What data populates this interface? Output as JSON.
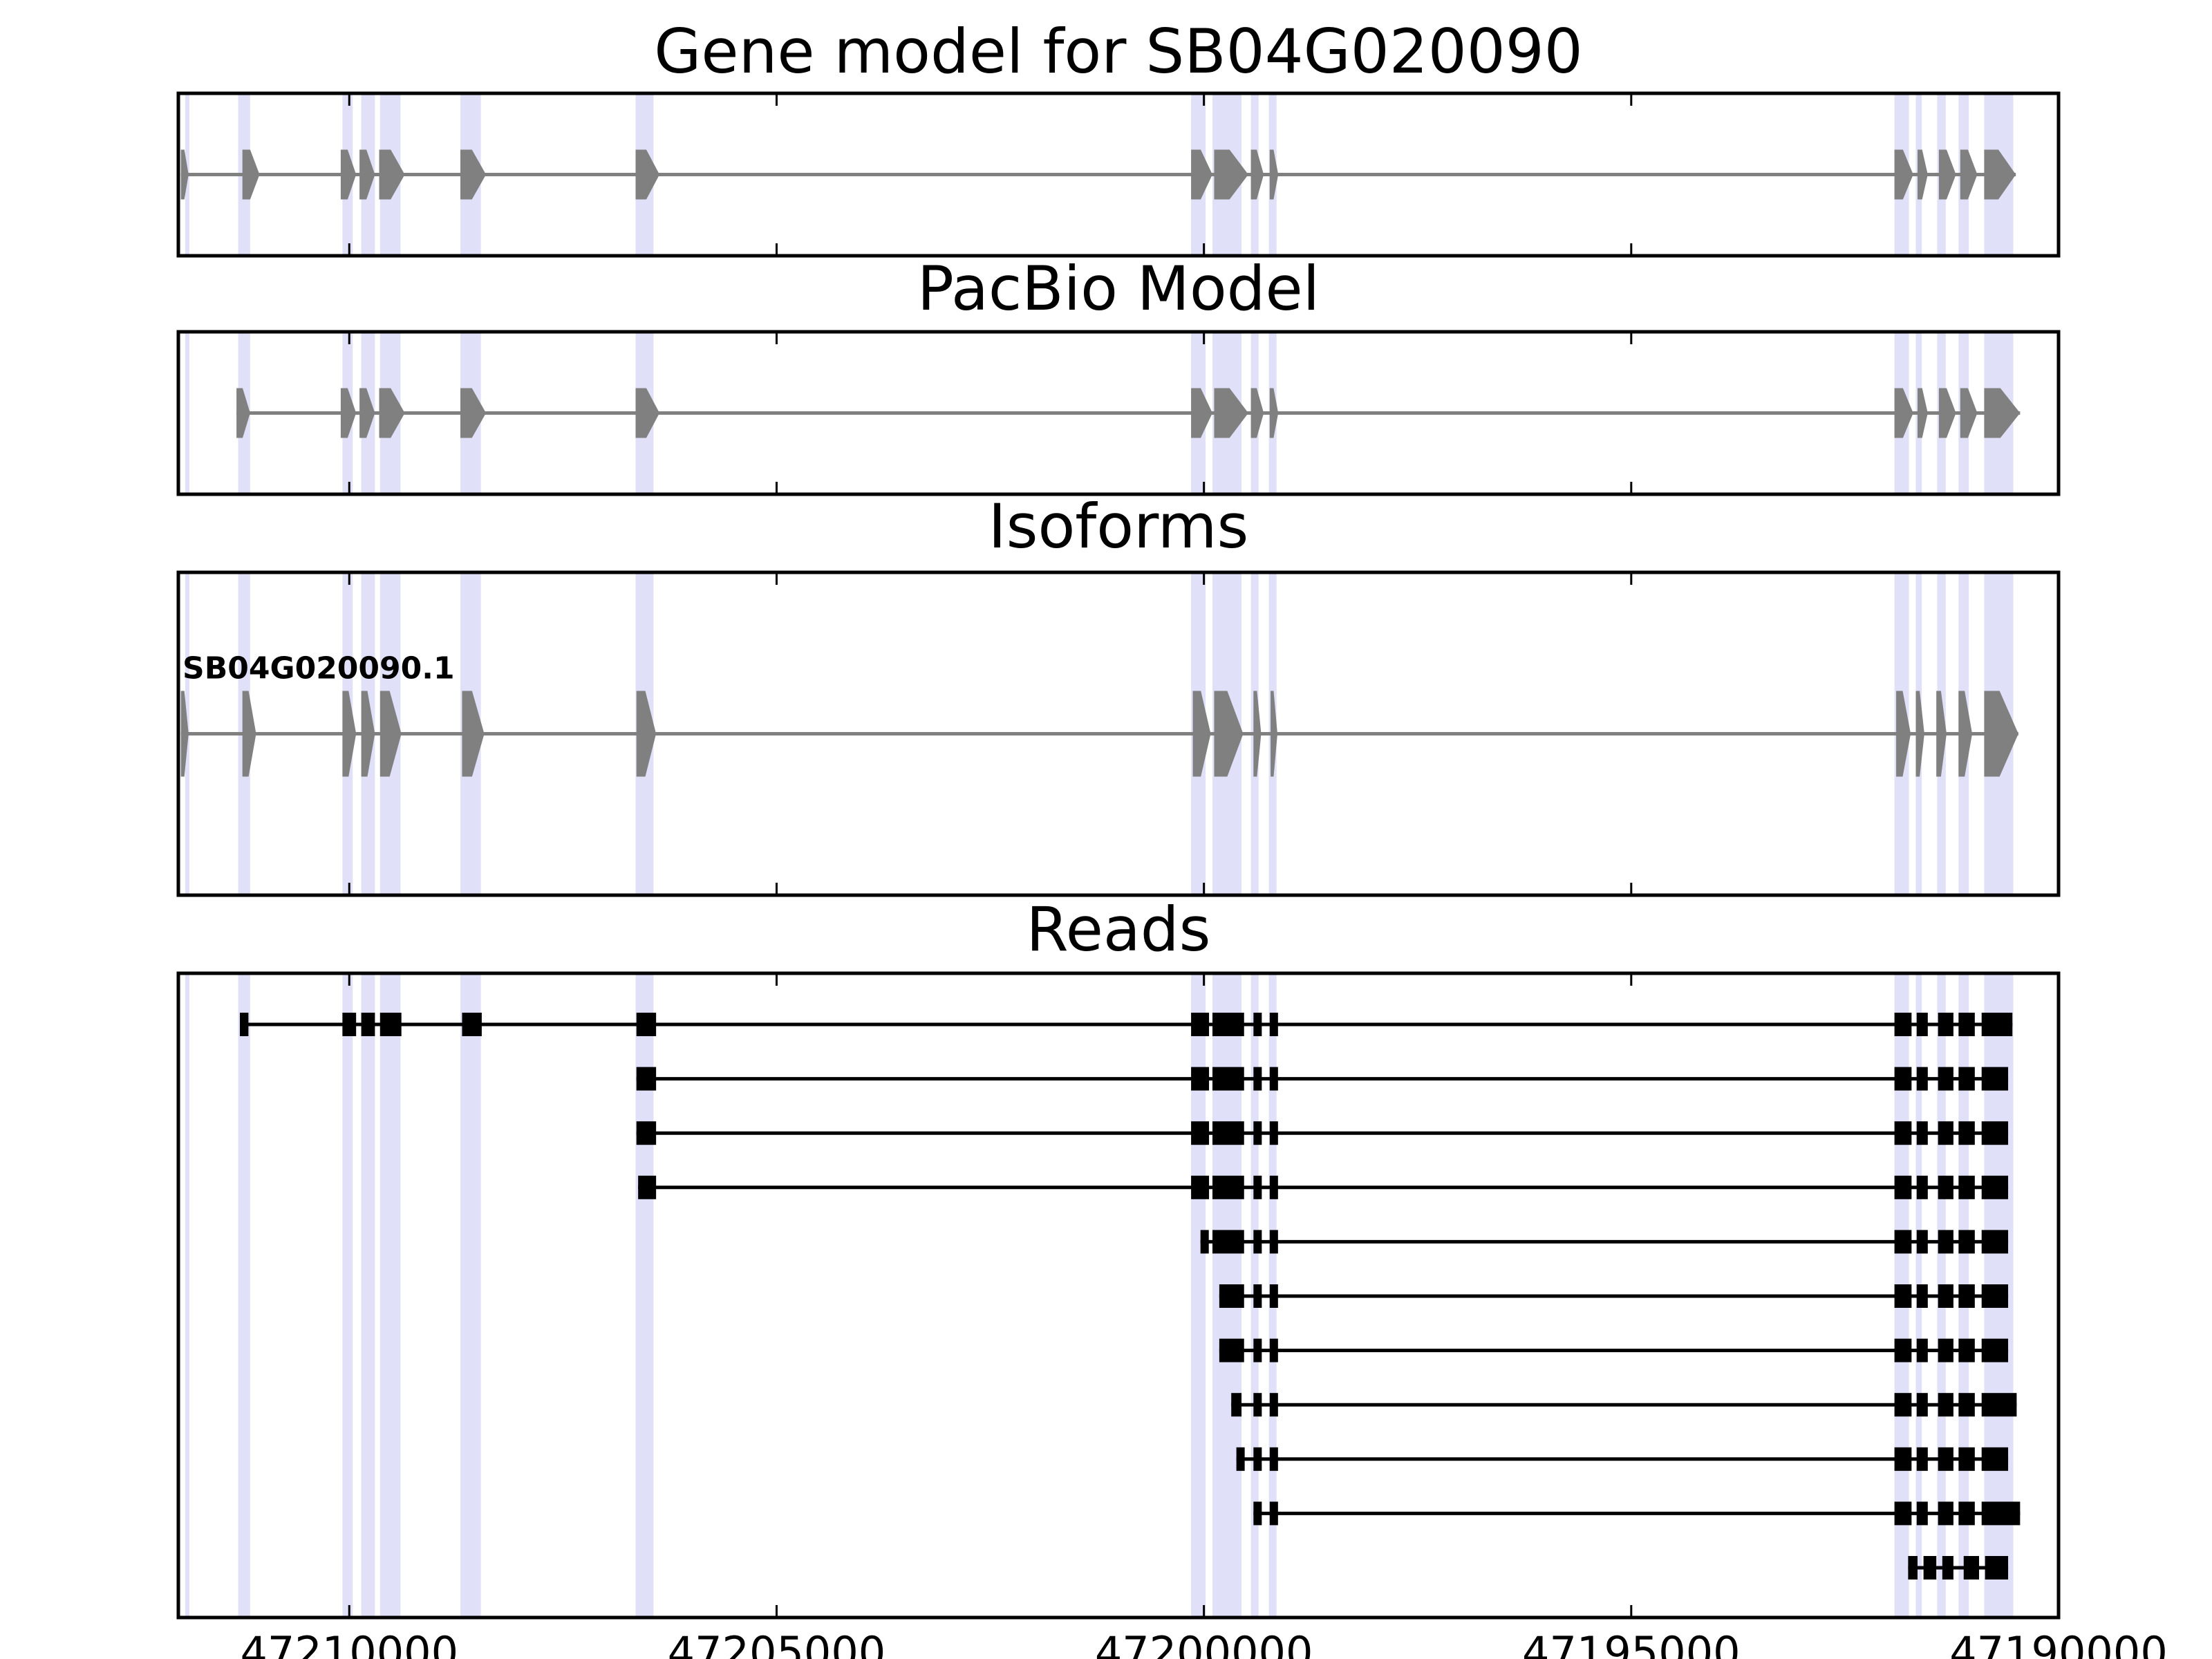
{
  "chart_data": {
    "type": "gene-structure",
    "xlim": [
      47212000,
      47190000
    ],
    "x_ticks": [
      47210000,
      47205000,
      47200000,
      47195000,
      47190000
    ],
    "x_tick_labels": [
      "47210000",
      "47205000",
      "47200000",
      "47195000",
      "47190000"
    ],
    "highlight_color": "#e0e0f8",
    "model_color": "#808080",
    "read_color": "#000000",
    "highlight_bands": [
      [
        47211920,
        47211880
      ],
      [
        47211300,
        47211160
      ],
      [
        47210080,
        47209960
      ],
      [
        47209860,
        47209700
      ],
      [
        47209640,
        47209400
      ],
      [
        47208700,
        47208460
      ],
      [
        47206650,
        47206440
      ],
      [
        47200150,
        47199980
      ],
      [
        47199900,
        47199560
      ],
      [
        47199450,
        47199360
      ],
      [
        47199240,
        47199150
      ],
      [
        47191920,
        47191750
      ],
      [
        47191670,
        47191600
      ],
      [
        47191420,
        47191320
      ],
      [
        47191170,
        47191050
      ],
      [
        47190870,
        47190530
      ]
    ],
    "panels": [
      {
        "title": "Gene model for SB04G020090",
        "models": [
          {
            "label": "",
            "exons": [
              [
                47211970,
                47211880
              ],
              [
                47211250,
                47211050
              ],
              [
                47210100,
                47209920
              ],
              [
                47209880,
                47209700
              ],
              [
                47209650,
                47209350
              ],
              [
                47208700,
                47208400
              ],
              [
                47206650,
                47206370
              ],
              [
                47200150,
                47199900
              ],
              [
                47199880,
                47199480
              ],
              [
                47199450,
                47199300
              ],
              [
                47199230,
                47199130
              ],
              [
                47191920,
                47191700
              ],
              [
                47191650,
                47191530
              ],
              [
                47191400,
                47191200
              ],
              [
                47191150,
                47190950
              ],
              [
                47190870,
                47190500
              ]
            ]
          }
        ]
      },
      {
        "title": "PacBio Model",
        "models": [
          {
            "label": "",
            "exons": [
              [
                47211320,
                47211160
              ],
              [
                47210100,
                47209920
              ],
              [
                47209880,
                47209700
              ],
              [
                47209650,
                47209350
              ],
              [
                47208700,
                47208400
              ],
              [
                47206650,
                47206370
              ],
              [
                47200150,
                47199900
              ],
              [
                47199880,
                47199480
              ],
              [
                47199450,
                47199300
              ],
              [
                47199230,
                47199130
              ],
              [
                47191920,
                47191700
              ],
              [
                47191650,
                47191530
              ],
              [
                47191400,
                47191200
              ],
              [
                47191150,
                47190950
              ],
              [
                47190870,
                47190450
              ]
            ]
          }
        ]
      },
      {
        "title": "Isoforms",
        "models": [
          {
            "label": "SB04G020090.1",
            "exons": [
              [
                47211970,
                47211880
              ],
              [
                47211250,
                47211090
              ],
              [
                47210080,
                47209920
              ],
              [
                47209860,
                47209700
              ],
              [
                47209640,
                47209390
              ],
              [
                47208680,
                47208420
              ],
              [
                47206640,
                47206410
              ],
              [
                47200130,
                47199920
              ],
              [
                47199880,
                47199540
              ],
              [
                47199420,
                47199330
              ],
              [
                47199220,
                47199140
              ],
              [
                47191900,
                47191730
              ],
              [
                47191670,
                47191570
              ],
              [
                47191430,
                47191310
              ],
              [
                47191170,
                47191010
              ],
              [
                47190870,
                47190470
              ]
            ]
          }
        ]
      },
      {
        "title": "Reads",
        "reads": [
          [
            [
              47211280,
              47211180
            ],
            [
              47210080,
              47209920
            ],
            [
              47209860,
              47209700
            ],
            [
              47209640,
              47209390
            ],
            [
              47208680,
              47208450
            ],
            [
              47206640,
              47206410
            ],
            [
              47200150,
              47199940
            ],
            [
              47199900,
              47199530
            ],
            [
              47199420,
              47199330
            ],
            [
              47199230,
              47199150
            ],
            [
              47191920,
              47191720
            ],
            [
              47191660,
              47191530
            ],
            [
              47191410,
              47191230
            ],
            [
              47191170,
              47190980
            ],
            [
              47190900,
              47190540
            ]
          ],
          [
            [
              47206640,
              47206410
            ],
            [
              47200150,
              47199940
            ],
            [
              47199900,
              47199530
            ],
            [
              47199420,
              47199330
            ],
            [
              47199230,
              47199150
            ],
            [
              47191920,
              47191720
            ],
            [
              47191660,
              47191530
            ],
            [
              47191410,
              47191230
            ],
            [
              47191170,
              47190980
            ],
            [
              47190900,
              47190590
            ]
          ],
          [
            [
              47206640,
              47206410
            ],
            [
              47200150,
              47199940
            ],
            [
              47199900,
              47199530
            ],
            [
              47199420,
              47199330
            ],
            [
              47199230,
              47199150
            ],
            [
              47191920,
              47191720
            ],
            [
              47191660,
              47191530
            ],
            [
              47191410,
              47191230
            ],
            [
              47191170,
              47190980
            ],
            [
              47190900,
              47190590
            ]
          ],
          [
            [
              47206620,
              47206410
            ],
            [
              47200150,
              47199940
            ],
            [
              47199900,
              47199530
            ],
            [
              47199420,
              47199330
            ],
            [
              47199230,
              47199150
            ],
            [
              47191920,
              47191720
            ],
            [
              47191660,
              47191530
            ],
            [
              47191410,
              47191230
            ],
            [
              47191170,
              47190980
            ],
            [
              47190900,
              47190590
            ]
          ],
          [
            [
              47200040,
              47199950
            ],
            [
              47199900,
              47199530
            ],
            [
              47199420,
              47199330
            ],
            [
              47199230,
              47199150
            ],
            [
              47191920,
              47191720
            ],
            [
              47191660,
              47191530
            ],
            [
              47191410,
              47191230
            ],
            [
              47191170,
              47190980
            ],
            [
              47190900,
              47190590
            ]
          ],
          [
            [
              47199820,
              47199530
            ],
            [
              47199420,
              47199330
            ],
            [
              47199230,
              47199150
            ],
            [
              47191920,
              47191720
            ],
            [
              47191660,
              47191530
            ],
            [
              47191410,
              47191230
            ],
            [
              47191170,
              47190980
            ],
            [
              47190900,
              47190590
            ]
          ],
          [
            [
              47199820,
              47199530
            ],
            [
              47199420,
              47199330
            ],
            [
              47199230,
              47199150
            ],
            [
              47191920,
              47191720
            ],
            [
              47191660,
              47191530
            ],
            [
              47191410,
              47191230
            ],
            [
              47191170,
              47190980
            ],
            [
              47190900,
              47190590
            ]
          ],
          [
            [
              47199680,
              47199560
            ],
            [
              47199420,
              47199330
            ],
            [
              47199230,
              47199150
            ],
            [
              47191920,
              47191720
            ],
            [
              47191660,
              47191530
            ],
            [
              47191410,
              47191230
            ],
            [
              47191170,
              47190980
            ],
            [
              47190900,
              47190490
            ]
          ],
          [
            [
              47199620,
              47199560
            ],
            [
              47199420,
              47199330
            ],
            [
              47199230,
              47199150
            ],
            [
              47191920,
              47191720
            ],
            [
              47191660,
              47191530
            ],
            [
              47191410,
              47191230
            ],
            [
              47191170,
              47190980
            ],
            [
              47190900,
              47190590
            ]
          ],
          [
            [
              47199420,
              47199330
            ],
            [
              47199230,
              47199150
            ],
            [
              47191920,
              47191720
            ],
            [
              47191660,
              47191530
            ],
            [
              47191410,
              47191230
            ],
            [
              47191170,
              47190980
            ],
            [
              47190900,
              47190450
            ]
          ],
          [
            [
              47191760,
              47191650
            ],
            [
              47191580,
              47191430
            ],
            [
              47191360,
              47191230
            ],
            [
              47191110,
              47190930
            ],
            [
              47190860,
              47190590
            ]
          ]
        ]
      }
    ]
  }
}
